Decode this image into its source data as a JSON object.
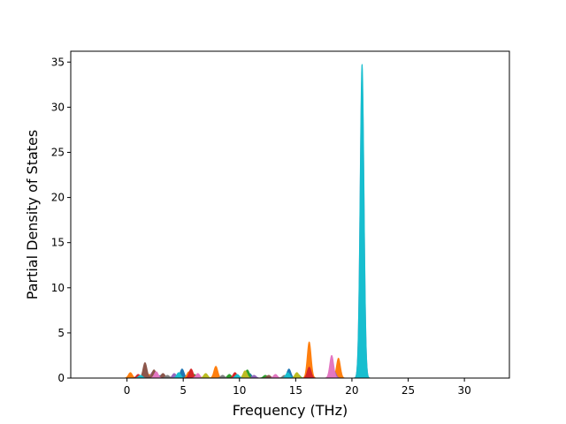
{
  "chart_data": {
    "type": "area",
    "title": "",
    "xlabel": "Frequency (THz)",
    "ylabel": "Partial Density of States",
    "xlim": [
      -5,
      34
    ],
    "ylim": [
      0,
      36.2
    ],
    "xticks": [
      "0",
      "5",
      "10",
      "15",
      "20",
      "25",
      "30"
    ],
    "yticks": [
      "0",
      "5",
      "10",
      "15",
      "20",
      "25",
      "30",
      "35"
    ],
    "grid": false,
    "legend": "none",
    "x_range": [
      -3.3,
      32.3
    ],
    "series": [
      {
        "color": "#1f77b4",
        "peaks": [
          [
            3.0,
            0.3
          ],
          [
            4.9,
            1.0
          ],
          [
            10.9,
            0.5
          ],
          [
            14.4,
            1.0
          ],
          [
            16.2,
            1.8
          ],
          [
            20.9,
            14.0
          ]
        ]
      },
      {
        "color": "#ff7f0e",
        "peaks": [
          [
            0.3,
            0.6
          ],
          [
            2.0,
            0.4
          ],
          [
            5.5,
            0.7
          ],
          [
            7.9,
            1.3
          ],
          [
            10.7,
            0.8
          ],
          [
            16.2,
            4.0
          ],
          [
            18.8,
            2.2
          ],
          [
            20.9,
            28.0
          ]
        ]
      },
      {
        "color": "#2ca02c",
        "peaks": [
          [
            6.0,
            0.4
          ],
          [
            9.1,
            0.4
          ],
          [
            10.7,
            0.9
          ],
          [
            12.3,
            0.3
          ],
          [
            15.2,
            0.4
          ],
          [
            20.9,
            6.0
          ]
        ]
      },
      {
        "color": "#d62728",
        "peaks": [
          [
            1.0,
            0.4
          ],
          [
            5.7,
            1.0
          ],
          [
            9.6,
            0.6
          ],
          [
            16.2,
            1.2
          ],
          [
            20.9,
            12.0
          ]
        ]
      },
      {
        "color": "#9467bd",
        "peaks": [
          [
            2.3,
            0.7
          ],
          [
            4.2,
            0.5
          ],
          [
            11.3,
            0.3
          ],
          [
            18.4,
            0.8
          ],
          [
            20.9,
            9.0
          ]
        ]
      },
      {
        "color": "#8c564b",
        "peaks": [
          [
            1.6,
            1.7
          ],
          [
            2.4,
            0.9
          ],
          [
            3.2,
            0.5
          ],
          [
            12.6,
            0.3
          ],
          [
            20.9,
            4.0
          ]
        ]
      },
      {
        "color": "#e377c2",
        "peaks": [
          [
            2.6,
            0.7
          ],
          [
            6.3,
            0.5
          ],
          [
            13.2,
            0.4
          ],
          [
            18.2,
            2.5
          ],
          [
            20.9,
            33.5
          ]
        ]
      },
      {
        "color": "#7f7f7f",
        "peaks": [
          [
            3.6,
            0.3
          ],
          [
            8.5,
            0.3
          ],
          [
            14.0,
            0.3
          ],
          [
            20.9,
            5.0
          ]
        ]
      },
      {
        "color": "#bcbd22",
        "peaks": [
          [
            7.0,
            0.5
          ],
          [
            10.5,
            0.8
          ],
          [
            15.1,
            0.6
          ],
          [
            20.9,
            8.0
          ]
        ]
      },
      {
        "color": "#17becf",
        "peaks": [
          [
            1.2,
            0.3
          ],
          [
            4.6,
            0.6
          ],
          [
            9.8,
            0.4
          ],
          [
            14.3,
            0.6
          ],
          [
            20.9,
            34.8
          ]
        ]
      }
    ]
  }
}
